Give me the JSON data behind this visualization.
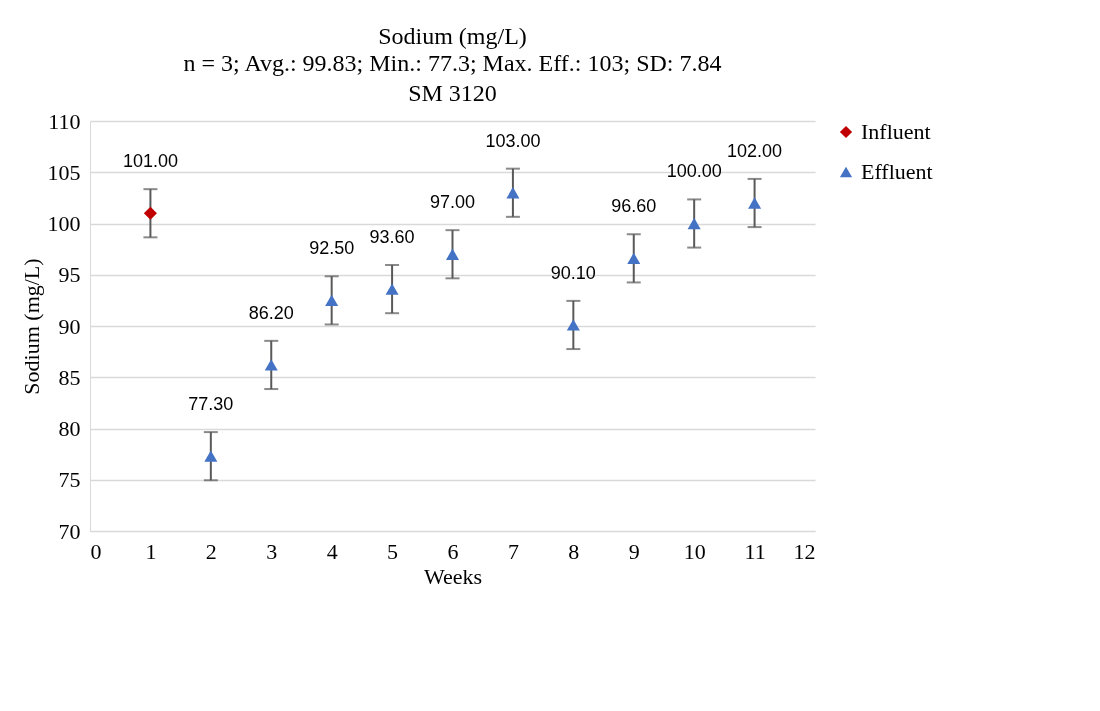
{
  "chart_data": {
    "type": "scatter",
    "title": "Sodium (mg/L)",
    "subtitle": "n = 3; Avg.: 99.83; Min.: 77.3; Max. Eff.: 103; SD: 7.84\nSM 3120",
    "xlabel": "Weeks",
    "ylabel": "Sodium (mg/L)",
    "xlim": [
      0,
      12
    ],
    "xticks": [
      0,
      1,
      2,
      3,
      4,
      5,
      6,
      7,
      8,
      9,
      10,
      11,
      12
    ],
    "ylim": [
      70,
      110
    ],
    "yticks": [
      70,
      75,
      80,
      85,
      90,
      95,
      100,
      105,
      110
    ],
    "grid": "y",
    "legend": "right",
    "series": [
      {
        "name": "Influent",
        "color": "#c00000",
        "marker": "diamond",
        "x": [
          1
        ],
        "values": [
          101.0
        ],
        "errors": [
          2.35
        ],
        "value_labels": [
          "101.00"
        ]
      },
      {
        "name": "Effluent",
        "color": "#4472c4",
        "marker": "triangle",
        "x": [
          2,
          3,
          4,
          5,
          6,
          7,
          8,
          9,
          10,
          11
        ],
        "values": [
          77.3,
          86.2,
          92.5,
          93.6,
          97.0,
          103.0,
          90.1,
          96.6,
          100.0,
          102.0
        ],
        "errors": [
          2.35,
          2.35,
          2.35,
          2.35,
          2.35,
          2.35,
          2.35,
          2.35,
          2.35,
          2.35
        ],
        "value_labels": [
          "77.30",
          "86.20",
          "92.50",
          "93.60",
          "97.00",
          "103.00",
          "90.10",
          "96.60",
          "100.00",
          "102.00"
        ]
      }
    ]
  }
}
